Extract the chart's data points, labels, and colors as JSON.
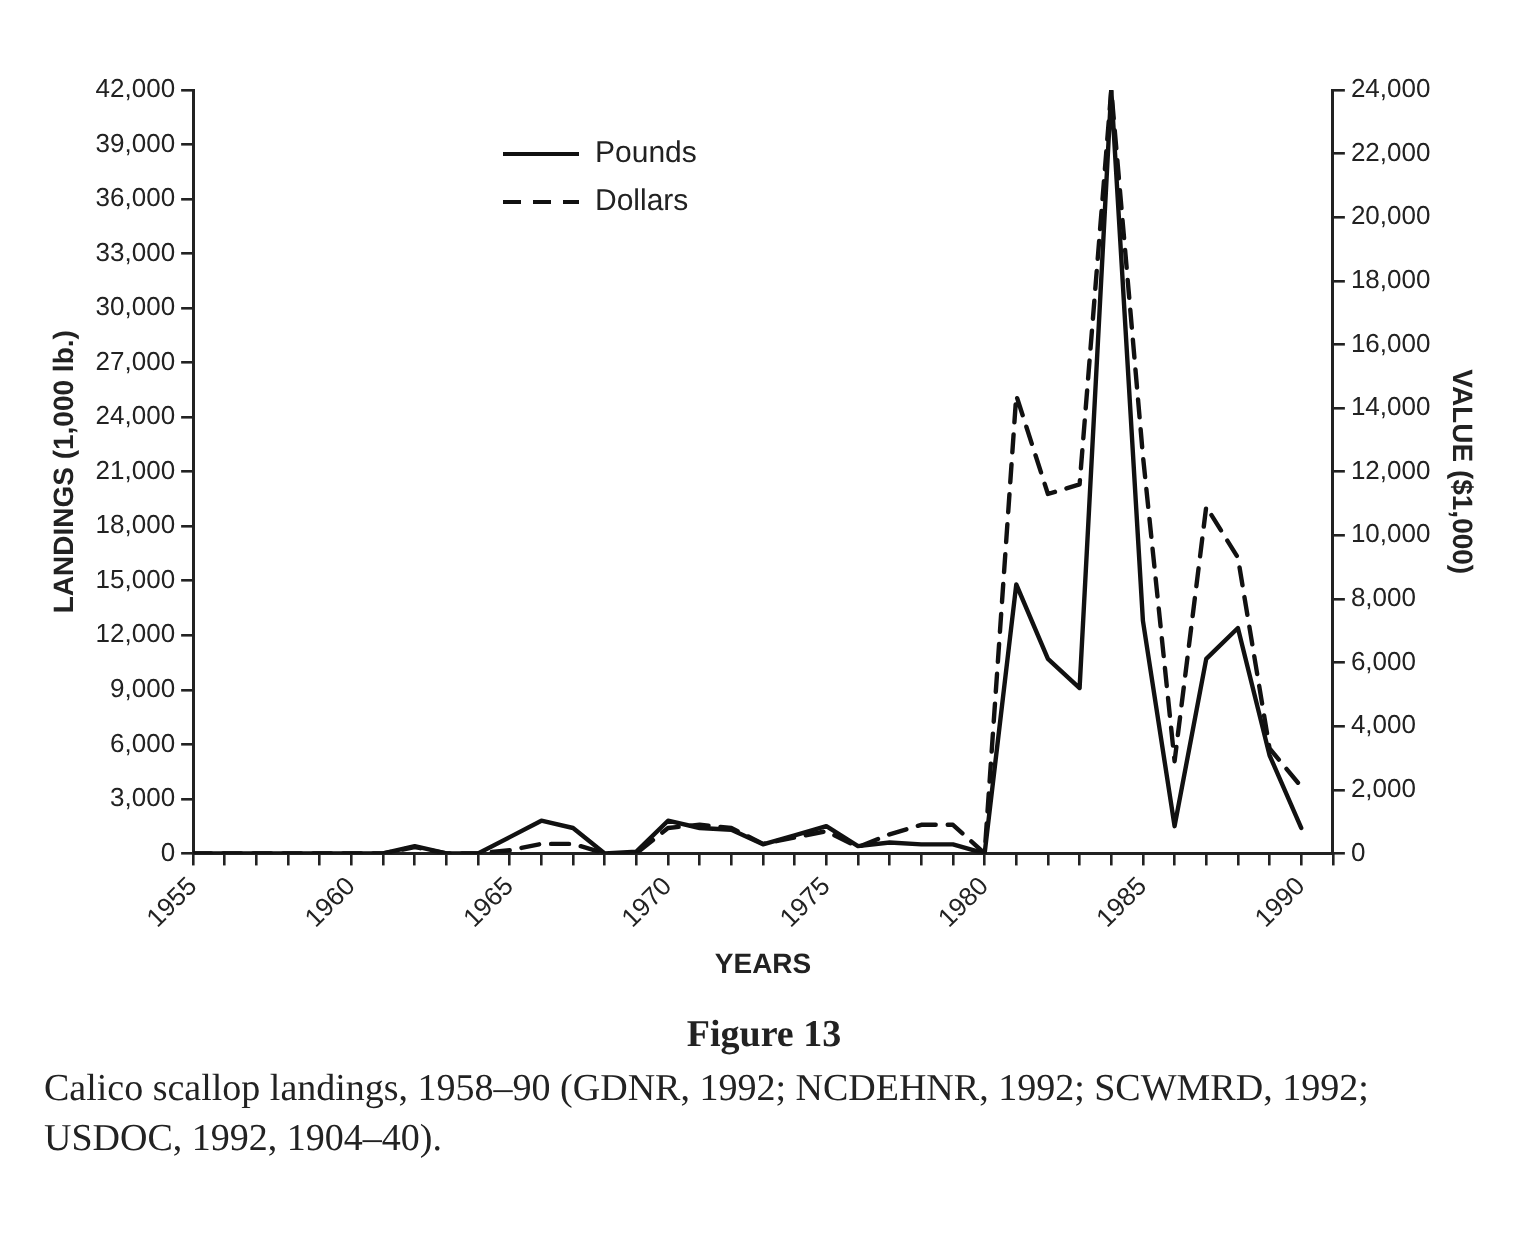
{
  "chart_data": {
    "type": "line",
    "title": "Figure 13",
    "annotations": [
      "Calico scallop landings, 1958–90 (GDNR, 1992; NCDEHNR, 1992; SCWMRD, 1992; USDOC, 1992, 1904–40)."
    ],
    "xlabel": "YEARS",
    "ylabel": "LANDINGS (1,000 lb.)",
    "y2label": "VALUE ($1,000)",
    "x": [
      1955,
      1956,
      1957,
      1958,
      1959,
      1960,
      1961,
      1962,
      1963,
      1964,
      1965,
      1966,
      1967,
      1968,
      1969,
      1970,
      1971,
      1972,
      1973,
      1974,
      1975,
      1976,
      1977,
      1978,
      1979,
      1980,
      1981,
      1982,
      1983,
      1984,
      1985,
      1986,
      1987,
      1988,
      1989,
      1990
    ],
    "series": [
      {
        "name": "Pounds",
        "color": "#111111",
        "line_style": "solid",
        "values": [
          0,
          0,
          0,
          0,
          0,
          0,
          0,
          400,
          0,
          0,
          900,
          1800,
          1400,
          0,
          100,
          1800,
          1400,
          1300,
          500,
          1000,
          1500,
          400,
          600,
          500,
          500,
          0,
          14800,
          10700,
          9100,
          42000,
          12800,
          1500,
          10700,
          12400,
          5400,
          1400
        ]
      },
      {
        "name": "Dollars",
        "color": "#111111",
        "line_style": "dashed",
        "axis": "y2",
        "values": [
          0,
          0,
          0,
          0,
          0,
          0,
          0,
          200,
          0,
          0,
          100,
          300,
          300,
          0,
          0,
          800,
          900,
          800,
          300,
          500,
          700,
          200,
          600,
          900,
          900,
          0,
          14400,
          11300,
          11600,
          24000,
          12500,
          2900,
          10900,
          9300,
          3300,
          2100
        ]
      }
    ],
    "xlim": [
      1955,
      1991
    ],
    "xticks": [
      {
        "value": 1955,
        "label": "1955"
      },
      {
        "value": 1956,
        "label": null
      },
      {
        "value": 1957,
        "label": null
      },
      {
        "value": 1958,
        "label": null
      },
      {
        "value": 1959,
        "label": null
      },
      {
        "value": 1960,
        "label": "1960"
      },
      {
        "value": 1961,
        "label": null
      },
      {
        "value": 1962,
        "label": null
      },
      {
        "value": 1963,
        "label": null
      },
      {
        "value": 1964,
        "label": null
      },
      {
        "value": 1965,
        "label": "1965"
      },
      {
        "value": 1966,
        "label": null
      },
      {
        "value": 1967,
        "label": null
      },
      {
        "value": 1968,
        "label": null
      },
      {
        "value": 1969,
        "label": null
      },
      {
        "value": 1970,
        "label": "1970"
      },
      {
        "value": 1971,
        "label": null
      },
      {
        "value": 1972,
        "label": null
      },
      {
        "value": 1973,
        "label": null
      },
      {
        "value": 1974,
        "label": null
      },
      {
        "value": 1975,
        "label": "1975"
      },
      {
        "value": 1976,
        "label": null
      },
      {
        "value": 1977,
        "label": null
      },
      {
        "value": 1978,
        "label": null
      },
      {
        "value": 1979,
        "label": null
      },
      {
        "value": 1980,
        "label": "1980"
      },
      {
        "value": 1981,
        "label": null
      },
      {
        "value": 1982,
        "label": null
      },
      {
        "value": 1983,
        "label": null
      },
      {
        "value": 1984,
        "label": null
      },
      {
        "value": 1985,
        "label": "1985"
      },
      {
        "value": 1986,
        "label": null
      },
      {
        "value": 1987,
        "label": null
      },
      {
        "value": 1988,
        "label": null
      },
      {
        "value": 1989,
        "label": null
      },
      {
        "value": 1990,
        "label": "1990"
      },
      {
        "value": 1991,
        "label": null
      }
    ],
    "ylim": [
      0,
      42000
    ],
    "yticks": [
      0,
      {
        "value": 3000,
        "label": "3,000"
      },
      {
        "value": 6000,
        "label": "6,000"
      },
      {
        "value": 9000,
        "label": "9,000"
      },
      {
        "value": 12000,
        "label": "12,000"
      },
      {
        "value": 15000,
        "label": "15,000"
      },
      {
        "value": 18000,
        "label": "18,000"
      },
      {
        "value": 21000,
        "label": "21,000"
      },
      {
        "value": 24000,
        "label": "24,000"
      },
      {
        "value": 27000,
        "label": "27,000"
      },
      {
        "value": 30000,
        "label": "30,000"
      },
      {
        "value": 33000,
        "label": "33,000"
      },
      {
        "value": 36000,
        "label": "36,000"
      },
      {
        "value": 39000,
        "label": "39,000"
      },
      {
        "value": 42000,
        "label": "42,000"
      }
    ],
    "y2lim": [
      0,
      24000
    ],
    "y2ticks": [
      0,
      {
        "value": 2000,
        "label": "2,000"
      },
      {
        "value": 4000,
        "label": "4,000"
      },
      {
        "value": 6000,
        "label": "6,000"
      },
      {
        "value": 8000,
        "label": "8,000"
      },
      {
        "value": 10000,
        "label": "10,000"
      },
      {
        "value": 12000,
        "label": "12,000"
      },
      {
        "value": 14000,
        "label": "14,000"
      },
      {
        "value": 16000,
        "label": "16,000"
      },
      {
        "value": 18000,
        "label": "18,000"
      },
      {
        "value": 20000,
        "label": "20,000"
      },
      {
        "value": 22000,
        "label": "22,000"
      },
      {
        "value": 24000,
        "label": "24,000"
      }
    ],
    "grid": false,
    "legend": "top",
    "marker": "none"
  }
}
